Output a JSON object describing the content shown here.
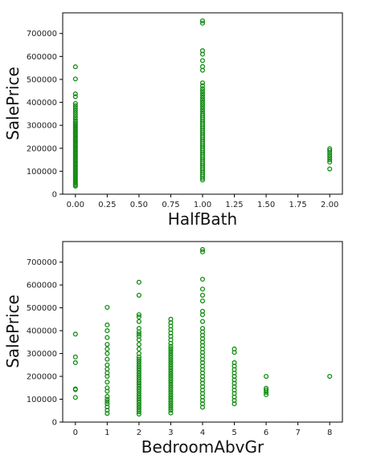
{
  "chart_data": [
    {
      "type": "scatter",
      "xlabel": "HalfBath",
      "ylabel": "SalePrice",
      "xlim": [
        -0.1,
        2.1
      ],
      "ylim": [
        0,
        790000
      ],
      "xticks": [
        0.0,
        0.25,
        0.5,
        0.75,
        1.0,
        1.25,
        1.5,
        1.75,
        2.0
      ],
      "xtick_labels": [
        "0.00",
        "0.25",
        "0.50",
        "0.75",
        "1.00",
        "1.25",
        "1.50",
        "1.75",
        "2.00"
      ],
      "yticks": [
        0,
        100000,
        200000,
        300000,
        400000,
        500000,
        600000,
        700000
      ],
      "ytick_labels": [
        "0",
        "100000",
        "200000",
        "300000",
        "400000",
        "500000",
        "600000",
        "700000"
      ],
      "marker_color": "#128c12",
      "grid": false,
      "points": [
        {
          "x": 0,
          "y": 35000
        },
        {
          "x": 0,
          "y": 40000
        },
        {
          "x": 0,
          "y": 46000
        },
        {
          "x": 0,
          "y": 52000
        },
        {
          "x": 0,
          "y": 58000
        },
        {
          "x": 0,
          "y": 64000
        },
        {
          "x": 0,
          "y": 70000
        },
        {
          "x": 0,
          "y": 76000
        },
        {
          "x": 0,
          "y": 82000
        },
        {
          "x": 0,
          "y": 88000
        },
        {
          "x": 0,
          "y": 94000
        },
        {
          "x": 0,
          "y": 100000
        },
        {
          "x": 0,
          "y": 106000
        },
        {
          "x": 0,
          "y": 112000
        },
        {
          "x": 0,
          "y": 118000
        },
        {
          "x": 0,
          "y": 124000
        },
        {
          "x": 0,
          "y": 130000
        },
        {
          "x": 0,
          "y": 136000
        },
        {
          "x": 0,
          "y": 142000
        },
        {
          "x": 0,
          "y": 148000
        },
        {
          "x": 0,
          "y": 154000
        },
        {
          "x": 0,
          "y": 160000
        },
        {
          "x": 0,
          "y": 166000
        },
        {
          "x": 0,
          "y": 172000
        },
        {
          "x": 0,
          "y": 178000
        },
        {
          "x": 0,
          "y": 184000
        },
        {
          "x": 0,
          "y": 190000
        },
        {
          "x": 0,
          "y": 196000
        },
        {
          "x": 0,
          "y": 202000
        },
        {
          "x": 0,
          "y": 208000
        },
        {
          "x": 0,
          "y": 214000
        },
        {
          "x": 0,
          "y": 220000
        },
        {
          "x": 0,
          "y": 226000
        },
        {
          "x": 0,
          "y": 232000
        },
        {
          "x": 0,
          "y": 238000
        },
        {
          "x": 0,
          "y": 244000
        },
        {
          "x": 0,
          "y": 250000
        },
        {
          "x": 0,
          "y": 256000
        },
        {
          "x": 0,
          "y": 262000
        },
        {
          "x": 0,
          "y": 268000
        },
        {
          "x": 0,
          "y": 274000
        },
        {
          "x": 0,
          "y": 280000
        },
        {
          "x": 0,
          "y": 286000
        },
        {
          "x": 0,
          "y": 292000
        },
        {
          "x": 0,
          "y": 298000
        },
        {
          "x": 0,
          "y": 304000
        },
        {
          "x": 0,
          "y": 310000
        },
        {
          "x": 0,
          "y": 316000
        },
        {
          "x": 0,
          "y": 325000
        },
        {
          "x": 0,
          "y": 335000
        },
        {
          "x": 0,
          "y": 345000
        },
        {
          "x": 0,
          "y": 355000
        },
        {
          "x": 0,
          "y": 365000
        },
        {
          "x": 0,
          "y": 375000
        },
        {
          "x": 0,
          "y": 385000
        },
        {
          "x": 0,
          "y": 395000
        },
        {
          "x": 0,
          "y": 425000
        },
        {
          "x": 0,
          "y": 437000
        },
        {
          "x": 0,
          "y": 502000
        },
        {
          "x": 0,
          "y": 555000
        },
        {
          "x": 1,
          "y": 62000
        },
        {
          "x": 1,
          "y": 70000
        },
        {
          "x": 1,
          "y": 78000
        },
        {
          "x": 1,
          "y": 86000
        },
        {
          "x": 1,
          "y": 94000
        },
        {
          "x": 1,
          "y": 102000
        },
        {
          "x": 1,
          "y": 110000
        },
        {
          "x": 1,
          "y": 118000
        },
        {
          "x": 1,
          "y": 126000
        },
        {
          "x": 1,
          "y": 134000
        },
        {
          "x": 1,
          "y": 142000
        },
        {
          "x": 1,
          "y": 150000
        },
        {
          "x": 1,
          "y": 158000
        },
        {
          "x": 1,
          "y": 166000
        },
        {
          "x": 1,
          "y": 174000
        },
        {
          "x": 1,
          "y": 182000
        },
        {
          "x": 1,
          "y": 190000
        },
        {
          "x": 1,
          "y": 198000
        },
        {
          "x": 1,
          "y": 206000
        },
        {
          "x": 1,
          "y": 214000
        },
        {
          "x": 1,
          "y": 222000
        },
        {
          "x": 1,
          "y": 230000
        },
        {
          "x": 1,
          "y": 238000
        },
        {
          "x": 1,
          "y": 246000
        },
        {
          "x": 1,
          "y": 254000
        },
        {
          "x": 1,
          "y": 262000
        },
        {
          "x": 1,
          "y": 270000
        },
        {
          "x": 1,
          "y": 278000
        },
        {
          "x": 1,
          "y": 286000
        },
        {
          "x": 1,
          "y": 294000
        },
        {
          "x": 1,
          "y": 302000
        },
        {
          "x": 1,
          "y": 310000
        },
        {
          "x": 1,
          "y": 318000
        },
        {
          "x": 1,
          "y": 326000
        },
        {
          "x": 1,
          "y": 334000
        },
        {
          "x": 1,
          "y": 342000
        },
        {
          "x": 1,
          "y": 350000
        },
        {
          "x": 1,
          "y": 360000
        },
        {
          "x": 1,
          "y": 370000
        },
        {
          "x": 1,
          "y": 380000
        },
        {
          "x": 1,
          "y": 390000
        },
        {
          "x": 1,
          "y": 400000
        },
        {
          "x": 1,
          "y": 410000
        },
        {
          "x": 1,
          "y": 420000
        },
        {
          "x": 1,
          "y": 430000
        },
        {
          "x": 1,
          "y": 440000
        },
        {
          "x": 1,
          "y": 450000
        },
        {
          "x": 1,
          "y": 460000
        },
        {
          "x": 1,
          "y": 472000
        },
        {
          "x": 1,
          "y": 485000
        },
        {
          "x": 1,
          "y": 540000
        },
        {
          "x": 1,
          "y": 556000
        },
        {
          "x": 1,
          "y": 582000
        },
        {
          "x": 1,
          "y": 610000
        },
        {
          "x": 1,
          "y": 625000
        },
        {
          "x": 1,
          "y": 745000
        },
        {
          "x": 1,
          "y": 755000
        },
        {
          "x": 2,
          "y": 110000
        },
        {
          "x": 2,
          "y": 140000
        },
        {
          "x": 2,
          "y": 150000
        },
        {
          "x": 2,
          "y": 160000
        },
        {
          "x": 2,
          "y": 170000
        },
        {
          "x": 2,
          "y": 180000
        },
        {
          "x": 2,
          "y": 190000
        },
        {
          "x": 2,
          "y": 198000
        }
      ]
    },
    {
      "type": "scatter",
      "xlabel": "BedroomAbvGr",
      "ylabel": "SalePrice",
      "xlim": [
        -0.4,
        8.4
      ],
      "ylim": [
        0,
        790000
      ],
      "xticks": [
        0,
        1,
        2,
        3,
        4,
        5,
        6,
        7,
        8
      ],
      "xtick_labels": [
        "0",
        "1",
        "2",
        "3",
        "4",
        "5",
        "6",
        "7",
        "8"
      ],
      "yticks": [
        0,
        100000,
        200000,
        300000,
        400000,
        500000,
        600000,
        700000
      ],
      "ytick_labels": [
        "0",
        "100000",
        "200000",
        "300000",
        "400000",
        "500000",
        "600000",
        "700000"
      ],
      "marker_color": "#128c12",
      "grid": false,
      "points": [
        {
          "x": 0,
          "y": 108000
        },
        {
          "x": 0,
          "y": 142000
        },
        {
          "x": 0,
          "y": 145000
        },
        {
          "x": 0,
          "y": 260000
        },
        {
          "x": 0,
          "y": 285000
        },
        {
          "x": 0,
          "y": 385000
        },
        {
          "x": 1,
          "y": 38000
        },
        {
          "x": 1,
          "y": 52000
        },
        {
          "x": 1,
          "y": 66000
        },
        {
          "x": 1,
          "y": 80000
        },
        {
          "x": 1,
          "y": 90000
        },
        {
          "x": 1,
          "y": 100000
        },
        {
          "x": 1,
          "y": 112000
        },
        {
          "x": 1,
          "y": 135000
        },
        {
          "x": 1,
          "y": 150000
        },
        {
          "x": 1,
          "y": 175000
        },
        {
          "x": 1,
          "y": 200000
        },
        {
          "x": 1,
          "y": 215000
        },
        {
          "x": 1,
          "y": 232000
        },
        {
          "x": 1,
          "y": 250000
        },
        {
          "x": 1,
          "y": 275000
        },
        {
          "x": 1,
          "y": 300000
        },
        {
          "x": 1,
          "y": 320000
        },
        {
          "x": 1,
          "y": 340000
        },
        {
          "x": 1,
          "y": 370000
        },
        {
          "x": 1,
          "y": 400000
        },
        {
          "x": 1,
          "y": 425000
        },
        {
          "x": 1,
          "y": 502000
        },
        {
          "x": 2,
          "y": 35000
        },
        {
          "x": 2,
          "y": 45000
        },
        {
          "x": 2,
          "y": 55000
        },
        {
          "x": 2,
          "y": 65000
        },
        {
          "x": 2,
          "y": 75000
        },
        {
          "x": 2,
          "y": 85000
        },
        {
          "x": 2,
          "y": 95000
        },
        {
          "x": 2,
          "y": 105000
        },
        {
          "x": 2,
          "y": 115000
        },
        {
          "x": 2,
          "y": 125000
        },
        {
          "x": 2,
          "y": 135000
        },
        {
          "x": 2,
          "y": 145000
        },
        {
          "x": 2,
          "y": 155000
        },
        {
          "x": 2,
          "y": 165000
        },
        {
          "x": 2,
          "y": 175000
        },
        {
          "x": 2,
          "y": 185000
        },
        {
          "x": 2,
          "y": 195000
        },
        {
          "x": 2,
          "y": 205000
        },
        {
          "x": 2,
          "y": 215000
        },
        {
          "x": 2,
          "y": 225000
        },
        {
          "x": 2,
          "y": 235000
        },
        {
          "x": 2,
          "y": 245000
        },
        {
          "x": 2,
          "y": 255000
        },
        {
          "x": 2,
          "y": 265000
        },
        {
          "x": 2,
          "y": 275000
        },
        {
          "x": 2,
          "y": 285000
        },
        {
          "x": 2,
          "y": 300000
        },
        {
          "x": 2,
          "y": 320000
        },
        {
          "x": 2,
          "y": 340000
        },
        {
          "x": 2,
          "y": 360000
        },
        {
          "x": 2,
          "y": 375000
        },
        {
          "x": 2,
          "y": 385000
        },
        {
          "x": 2,
          "y": 395000
        },
        {
          "x": 2,
          "y": 410000
        },
        {
          "x": 2,
          "y": 440000
        },
        {
          "x": 2,
          "y": 460000
        },
        {
          "x": 2,
          "y": 470000
        },
        {
          "x": 2,
          "y": 555000
        },
        {
          "x": 2,
          "y": 612000
        },
        {
          "x": 3,
          "y": 40000
        },
        {
          "x": 3,
          "y": 52000
        },
        {
          "x": 3,
          "y": 62000
        },
        {
          "x": 3,
          "y": 72000
        },
        {
          "x": 3,
          "y": 82000
        },
        {
          "x": 3,
          "y": 92000
        },
        {
          "x": 3,
          "y": 102000
        },
        {
          "x": 3,
          "y": 112000
        },
        {
          "x": 3,
          "y": 122000
        },
        {
          "x": 3,
          "y": 132000
        },
        {
          "x": 3,
          "y": 142000
        },
        {
          "x": 3,
          "y": 152000
        },
        {
          "x": 3,
          "y": 162000
        },
        {
          "x": 3,
          "y": 172000
        },
        {
          "x": 3,
          "y": 182000
        },
        {
          "x": 3,
          "y": 192000
        },
        {
          "x": 3,
          "y": 202000
        },
        {
          "x": 3,
          "y": 212000
        },
        {
          "x": 3,
          "y": 222000
        },
        {
          "x": 3,
          "y": 232000
        },
        {
          "x": 3,
          "y": 242000
        },
        {
          "x": 3,
          "y": 252000
        },
        {
          "x": 3,
          "y": 262000
        },
        {
          "x": 3,
          "y": 272000
        },
        {
          "x": 3,
          "y": 282000
        },
        {
          "x": 3,
          "y": 292000
        },
        {
          "x": 3,
          "y": 302000
        },
        {
          "x": 3,
          "y": 312000
        },
        {
          "x": 3,
          "y": 322000
        },
        {
          "x": 3,
          "y": 332000
        },
        {
          "x": 3,
          "y": 345000
        },
        {
          "x": 3,
          "y": 360000
        },
        {
          "x": 3,
          "y": 375000
        },
        {
          "x": 3,
          "y": 390000
        },
        {
          "x": 3,
          "y": 405000
        },
        {
          "x": 3,
          "y": 420000
        },
        {
          "x": 3,
          "y": 435000
        },
        {
          "x": 3,
          "y": 450000
        },
        {
          "x": 4,
          "y": 65000
        },
        {
          "x": 4,
          "y": 80000
        },
        {
          "x": 4,
          "y": 95000
        },
        {
          "x": 4,
          "y": 110000
        },
        {
          "x": 4,
          "y": 125000
        },
        {
          "x": 4,
          "y": 140000
        },
        {
          "x": 4,
          "y": 155000
        },
        {
          "x": 4,
          "y": 170000
        },
        {
          "x": 4,
          "y": 185000
        },
        {
          "x": 4,
          "y": 200000
        },
        {
          "x": 4,
          "y": 215000
        },
        {
          "x": 4,
          "y": 230000
        },
        {
          "x": 4,
          "y": 245000
        },
        {
          "x": 4,
          "y": 260000
        },
        {
          "x": 4,
          "y": 275000
        },
        {
          "x": 4,
          "y": 290000
        },
        {
          "x": 4,
          "y": 305000
        },
        {
          "x": 4,
          "y": 320000
        },
        {
          "x": 4,
          "y": 335000
        },
        {
          "x": 4,
          "y": 350000
        },
        {
          "x": 4,
          "y": 365000
        },
        {
          "x": 4,
          "y": 380000
        },
        {
          "x": 4,
          "y": 395000
        },
        {
          "x": 4,
          "y": 410000
        },
        {
          "x": 4,
          "y": 440000
        },
        {
          "x": 4,
          "y": 470000
        },
        {
          "x": 4,
          "y": 485000
        },
        {
          "x": 4,
          "y": 530000
        },
        {
          "x": 4,
          "y": 555000
        },
        {
          "x": 4,
          "y": 582000
        },
        {
          "x": 4,
          "y": 625000
        },
        {
          "x": 4,
          "y": 745000
        },
        {
          "x": 4,
          "y": 755000
        },
        {
          "x": 5,
          "y": 80000
        },
        {
          "x": 5,
          "y": 95000
        },
        {
          "x": 5,
          "y": 110000
        },
        {
          "x": 5,
          "y": 125000
        },
        {
          "x": 5,
          "y": 140000
        },
        {
          "x": 5,
          "y": 155000
        },
        {
          "x": 5,
          "y": 170000
        },
        {
          "x": 5,
          "y": 185000
        },
        {
          "x": 5,
          "y": 200000
        },
        {
          "x": 5,
          "y": 215000
        },
        {
          "x": 5,
          "y": 230000
        },
        {
          "x": 5,
          "y": 245000
        },
        {
          "x": 5,
          "y": 260000
        },
        {
          "x": 5,
          "y": 305000
        },
        {
          "x": 5,
          "y": 320000
        },
        {
          "x": 6,
          "y": 120000
        },
        {
          "x": 6,
          "y": 130000
        },
        {
          "x": 6,
          "y": 140000
        },
        {
          "x": 6,
          "y": 148000
        },
        {
          "x": 6,
          "y": 200000
        },
        {
          "x": 8,
          "y": 200000
        }
      ]
    }
  ]
}
